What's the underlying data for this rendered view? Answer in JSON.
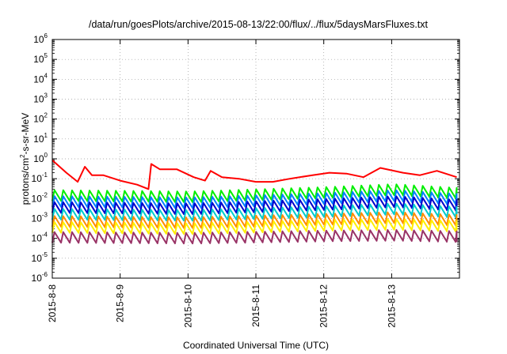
{
  "chart_data": {
    "type": "line",
    "title": "/data/run/goesPlots/archive/2015-08-13/22:00/flux/../flux/5daysMarsFluxes.txt",
    "xlabel": "Coordinated Universal Time (UTC)",
    "ylabel": {
      "prefix": "protons/cm",
      "sup": "2",
      "suffix": "-s-sr-MeV"
    },
    "y_scale": "log",
    "ylim": [
      1e-06,
      1000000.0
    ],
    "y_ticks": [
      {
        "value": 1e-06,
        "base": "10",
        "exp": "-6"
      },
      {
        "value": 1e-05,
        "base": "10",
        "exp": "-5"
      },
      {
        "value": 0.0001,
        "base": "10",
        "exp": "-4"
      },
      {
        "value": 0.001,
        "base": "10",
        "exp": "-3"
      },
      {
        "value": 0.01,
        "base": "10",
        "exp": "-2"
      },
      {
        "value": 0.1,
        "base": "10",
        "exp": "-1"
      },
      {
        "value": 1,
        "base": "10",
        "exp": "0"
      },
      {
        "value": 10.0,
        "base": "10",
        "exp": "1"
      },
      {
        "value": 100.0,
        "base": "10",
        "exp": "2"
      },
      {
        "value": 1000.0,
        "base": "10",
        "exp": "3"
      },
      {
        "value": 10000.0,
        "base": "10",
        "exp": "4"
      },
      {
        "value": 100000.0,
        "base": "10",
        "exp": "5"
      },
      {
        "value": 1000000.0,
        "base": "10",
        "exp": "6"
      }
    ],
    "xlim": [
      "2015-08-08T00:00",
      "2015-08-13T23:59"
    ],
    "x_ticks": [
      "2015-8-8",
      "2015-8-9",
      "2015-8-10",
      "2015-8-11",
      "2015-8-12",
      "2015-8-13"
    ],
    "grid": true,
    "legend": "none",
    "series": [
      {
        "color": "#ff0000",
        "style": "sawtooth",
        "points": [
          [
            "2015-08-08T00:00",
            0.85
          ],
          [
            "2015-08-08T05:00",
            0.2
          ],
          [
            "2015-08-08T09:00",
            0.07
          ],
          [
            "2015-08-08T11:30",
            0.4
          ],
          [
            "2015-08-08T14:00",
            0.15
          ],
          [
            "2015-08-08T18:00",
            0.15
          ],
          [
            "2015-08-09T00:00",
            0.08
          ],
          [
            "2015-08-09T06:00",
            0.05
          ],
          [
            "2015-08-09T10:00",
            0.03
          ],
          [
            "2015-08-09T11:00",
            0.55
          ],
          [
            "2015-08-09T14:00",
            0.3
          ],
          [
            "2015-08-09T20:00",
            0.3
          ],
          [
            "2015-08-10T02:00",
            0.12
          ],
          [
            "2015-08-10T06:00",
            0.08
          ],
          [
            "2015-08-10T08:00",
            0.25
          ],
          [
            "2015-08-10T12:00",
            0.12
          ],
          [
            "2015-08-10T18:00",
            0.1
          ],
          [
            "2015-08-11T00:00",
            0.07
          ],
          [
            "2015-08-11T06:00",
            0.07
          ],
          [
            "2015-08-11T12:00",
            0.1
          ],
          [
            "2015-08-11T20:00",
            0.15
          ],
          [
            "2015-08-12T02:00",
            0.2
          ],
          [
            "2015-08-12T08:00",
            0.18
          ],
          [
            "2015-08-12T14:00",
            0.12
          ],
          [
            "2015-08-12T20:00",
            0.35
          ],
          [
            "2015-08-13T04:00",
            0.2
          ],
          [
            "2015-08-13T10:00",
            0.15
          ],
          [
            "2015-08-13T16:00",
            0.25
          ],
          [
            "2015-08-13T23:00",
            0.12
          ]
        ]
      },
      {
        "color": "#00ee00",
        "style": "sawtooth",
        "points": [
          [
            "2015-08-08T00:00",
            0.014
          ],
          [
            "2015-08-10T00:00",
            0.012
          ],
          [
            "2015-08-12T00:00",
            0.02
          ],
          [
            "2015-08-13T00:00",
            0.028
          ],
          [
            "2015-08-13T23:00",
            0.018
          ]
        ]
      },
      {
        "color": "#0080ff",
        "style": "sawtooth",
        "points": [
          [
            "2015-08-08T00:00",
            0.007
          ],
          [
            "2015-08-10T00:00",
            0.006
          ],
          [
            "2015-08-12T00:00",
            0.01
          ],
          [
            "2015-08-13T00:00",
            0.014
          ],
          [
            "2015-08-13T23:00",
            0.009
          ]
        ]
      },
      {
        "color": "#0000cc",
        "style": "sawtooth",
        "points": [
          [
            "2015-08-08T00:00",
            0.0035
          ],
          [
            "2015-08-10T00:00",
            0.003
          ],
          [
            "2015-08-12T00:00",
            0.005
          ],
          [
            "2015-08-13T00:00",
            0.007
          ],
          [
            "2015-08-13T23:00",
            0.0045
          ]
        ]
      },
      {
        "color": "#00cccc",
        "style": "sawtooth",
        "points": [
          [
            "2015-08-08T00:00",
            0.0016
          ],
          [
            "2015-08-10T00:00",
            0.0014
          ],
          [
            "2015-08-12T00:00",
            0.0022
          ],
          [
            "2015-08-13T00:00",
            0.003
          ],
          [
            "2015-08-13T23:00",
            0.002
          ]
        ]
      },
      {
        "color": "#ff8c00",
        "style": "sawtooth",
        "points": [
          [
            "2015-08-08T00:00",
            0.0007
          ],
          [
            "2015-08-10T00:00",
            0.0006
          ],
          [
            "2015-08-12T00:00",
            0.0009
          ],
          [
            "2015-08-13T00:00",
            0.0011
          ],
          [
            "2015-08-13T23:00",
            0.0008
          ]
        ]
      },
      {
        "color": "#ffee00",
        "style": "sawtooth",
        "points": [
          [
            "2015-08-08T00:00",
            0.00035
          ],
          [
            "2015-08-10T00:00",
            0.0003
          ],
          [
            "2015-08-12T00:00",
            0.00045
          ],
          [
            "2015-08-13T00:00",
            0.0005
          ],
          [
            "2015-08-13T23:00",
            0.0004
          ]
        ]
      },
      {
        "color": "#993366",
        "style": "sawtooth",
        "points": [
          [
            "2015-08-08T00:00",
            0.00011
          ],
          [
            "2015-08-10T00:00",
            0.0001
          ],
          [
            "2015-08-12T00:00",
            0.00013
          ],
          [
            "2015-08-13T00:00",
            0.00014
          ],
          [
            "2015-08-13T23:00",
            0.00012
          ]
        ]
      }
    ]
  }
}
